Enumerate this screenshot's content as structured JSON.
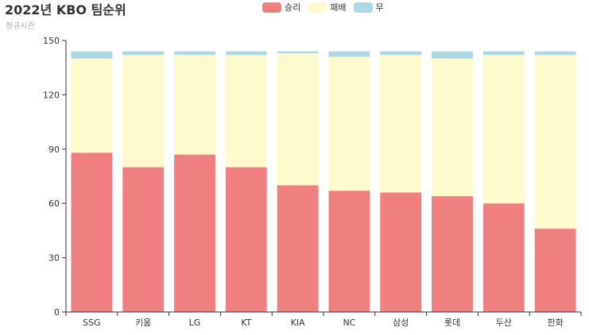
{
  "title": "2022년 KBO 팀순위",
  "subtitle": "정규시즌",
  "legend": [
    {
      "label": "승리",
      "color": "#f08080"
    },
    {
      "label": "패배",
      "color": "#fffacd"
    },
    {
      "label": "무",
      "color": "#add8e6"
    }
  ],
  "chart_data": {
    "type": "bar",
    "stacked": true,
    "title": "2022년 KBO 팀순위",
    "subtitle": "정규시즌",
    "categories": [
      "SSG",
      "키움",
      "LG",
      "KT",
      "KIA",
      "NC",
      "삼성",
      "롯데",
      "두산",
      "한화"
    ],
    "series": [
      {
        "name": "승리",
        "color": "#f08080",
        "values": [
          88,
          80,
          87,
          80,
          70,
          67,
          66,
          64,
          60,
          46
        ]
      },
      {
        "name": "패배",
        "color": "#fffacd",
        "values": [
          52,
          62,
          55,
          62,
          73,
          74,
          76,
          76,
          82,
          96
        ]
      },
      {
        "name": "무",
        "color": "#add8e6",
        "values": [
          4,
          2,
          2,
          2,
          1,
          3,
          2,
          4,
          2,
          2
        ]
      }
    ],
    "ylim": [
      0,
      150
    ],
    "yticks": [
      0,
      30,
      60,
      90,
      120,
      150
    ],
    "xlabel": "",
    "ylabel": "",
    "grid": false,
    "legend_position": "top-center"
  }
}
